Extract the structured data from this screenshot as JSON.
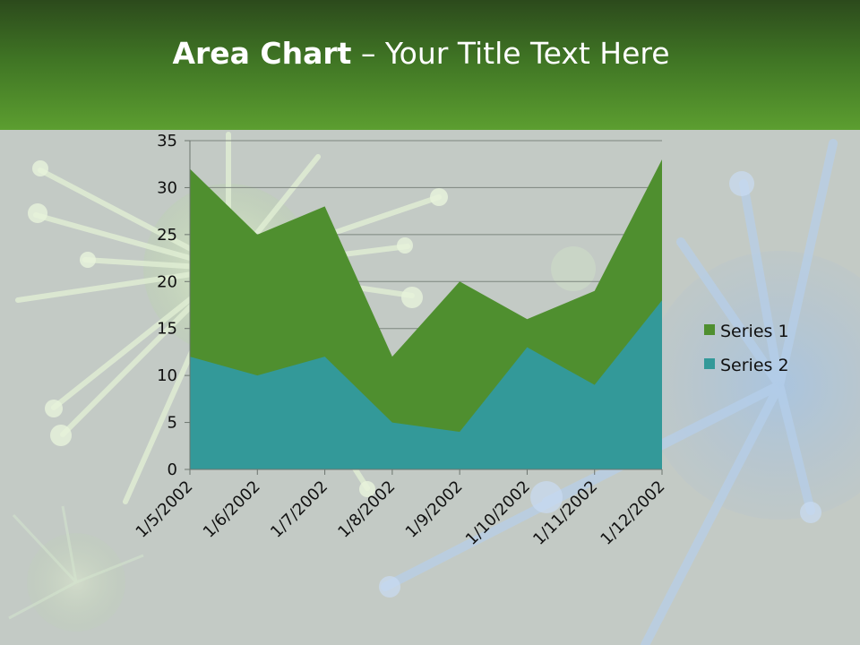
{
  "slide": {
    "title_bold": "Area Chart",
    "title_rest": " – Your Title Text Here"
  },
  "colors": {
    "header_top": "#2c4a1c",
    "header_bottom": "#5c9e30",
    "background": "#c3cac5"
  },
  "chart_data": {
    "type": "area",
    "categories": [
      "1/5/2002",
      "1/6/2002",
      "1/7/2002",
      "1/8/2002",
      "1/9/2002",
      "1/10/2002",
      "1/11/2002",
      "1/12/2002"
    ],
    "series": [
      {
        "name": "Series 1",
        "values": [
          32,
          25,
          28,
          12,
          20,
          16,
          19,
          33
        ],
        "color": "#4f8f2f"
      },
      {
        "name": "Series 2",
        "values": [
          12,
          10,
          12,
          5,
          4,
          13,
          9,
          18
        ],
        "color": "#339999"
      }
    ],
    "ylim": [
      0,
      35
    ],
    "yticks": [
      0,
      5,
      10,
      15,
      20,
      25,
      30,
      35
    ],
    "grid": true,
    "legend": "right",
    "title": "",
    "xlabel": "",
    "ylabel": ""
  }
}
